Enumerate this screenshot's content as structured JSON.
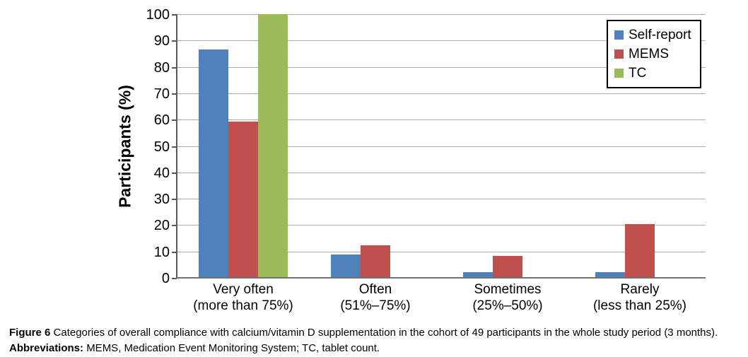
{
  "chart_data": {
    "type": "bar",
    "title": "",
    "xlabel": "",
    "ylabel": "Participants (%)",
    "ylim": [
      0,
      100
    ],
    "yticks": [
      0,
      10,
      20,
      30,
      40,
      50,
      60,
      70,
      80,
      90,
      100
    ],
    "grid": true,
    "legend_position": "top-right",
    "categories": [
      {
        "label": "Very often",
        "sublabel": "(more than 75%)"
      },
      {
        "label": "Often",
        "sublabel": "(51%–75%)"
      },
      {
        "label": "Sometimes",
        "sublabel": "(25%–50%)"
      },
      {
        "label": "Rarely",
        "sublabel": "(less than 25%)"
      }
    ],
    "series": [
      {
        "name": "Self-report",
        "color": "#4F81BD",
        "values": [
          86.7,
          8.9,
          2.2,
          2.2
        ]
      },
      {
        "name": "MEMS",
        "color": "#C0504D",
        "values": [
          59.2,
          12.2,
          8.2,
          20.4
        ]
      },
      {
        "name": "TC",
        "color": "#9BBB59",
        "values": [
          100,
          0,
          0,
          0
        ]
      }
    ]
  },
  "colors": {
    "gridline": "#ababab",
    "axis": "#595959",
    "background": "#ffffff",
    "legend_border": "#000000"
  },
  "caption": {
    "line1_lead": "Figure 6",
    "line1_text": "Categories of overall compliance with calcium/vitamin D supplementation in the cohort of 49 participants in the whole study period (3 months).",
    "line2_lead": "Abbreviations:",
    "line2_text": "MEMS, Medication Event Monitoring System; TC, tablet count."
  }
}
